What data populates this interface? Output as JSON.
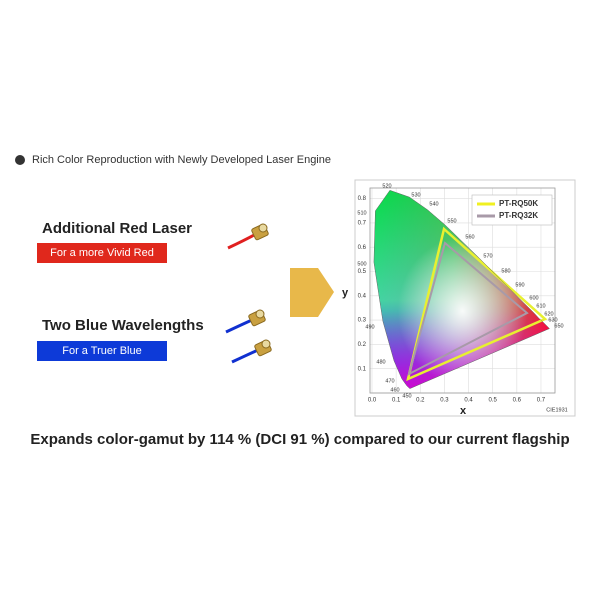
{
  "header": {
    "text": "Rich Color Reproduction with Newly Developed Laser Engine"
  },
  "features": [
    {
      "title": "Additional Red Laser",
      "tag": "For a more Vivid Red"
    },
    {
      "title": "Two Blue Wavelengths",
      "tag": "For a Truer Blue"
    }
  ],
  "diagram": {
    "x_axis_label": "x",
    "y_axis_label": "y",
    "x_ticks": [
      "0.0",
      "0.1",
      "0.2",
      "0.3",
      "0.4",
      "0.5",
      "0.6",
      "0.7"
    ],
    "y_ticks": [
      "0.1",
      "0.2",
      "0.3",
      "0.4",
      "0.5",
      "0.6",
      "0.7",
      "0.8"
    ],
    "wavelengths": [
      "520",
      "530",
      "540",
      "550",
      "560",
      "570",
      "580",
      "590",
      "600",
      "610",
      "620",
      "630",
      "650",
      "510",
      "500",
      "490",
      "480",
      "470",
      "460",
      "450"
    ],
    "legend": [
      "PT-RQ50K",
      "PT-RQ32K"
    ],
    "source": "CIE1931"
  },
  "footer": {
    "text": "Expands color-gamut by 114 % (DCI 91 %) compared to our current flagship"
  }
}
